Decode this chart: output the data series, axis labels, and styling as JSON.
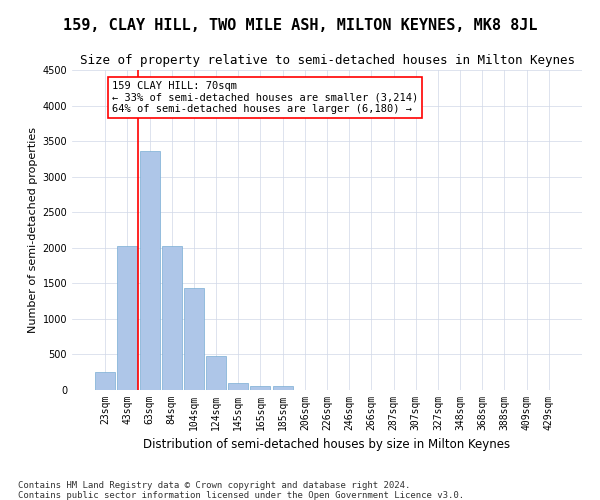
{
  "title": "159, CLAY HILL, TWO MILE ASH, MILTON KEYNES, MK8 8JL",
  "subtitle": "Size of property relative to semi-detached houses in Milton Keynes",
  "xlabel": "Distribution of semi-detached houses by size in Milton Keynes",
  "ylabel": "Number of semi-detached properties",
  "footer1": "Contains HM Land Registry data © Crown copyright and database right 2024.",
  "footer2": "Contains public sector information licensed under the Open Government Licence v3.0.",
  "categories": [
    "23sqm",
    "43sqm",
    "63sqm",
    "84sqm",
    "104sqm",
    "124sqm",
    "145sqm",
    "165sqm",
    "185sqm",
    "206sqm",
    "226sqm",
    "246sqm",
    "266sqm",
    "287sqm",
    "307sqm",
    "327sqm",
    "348sqm",
    "368sqm",
    "388sqm",
    "409sqm",
    "429sqm"
  ],
  "values": [
    250,
    2030,
    3360,
    2030,
    1440,
    480,
    100,
    60,
    55,
    0,
    0,
    0,
    0,
    0,
    0,
    0,
    0,
    0,
    0,
    0,
    0
  ],
  "bar_color": "#aec6e8",
  "bar_edge_color": "#7aaed4",
  "grid_color": "#d0d8e8",
  "annotation_line1": "159 CLAY HILL: 70sqm",
  "annotation_line2": "← 33% of semi-detached houses are smaller (3,214)",
  "annotation_line3": "64% of semi-detached houses are larger (6,180) →",
  "vline_x": 1.5,
  "vline_color": "red",
  "annotation_box_color": "red",
  "ylim": [
    0,
    4500
  ],
  "yticks": [
    0,
    500,
    1000,
    1500,
    2000,
    2500,
    3000,
    3500,
    4000,
    4500
  ],
  "title_fontsize": 11,
  "subtitle_fontsize": 9,
  "xlabel_fontsize": 8.5,
  "ylabel_fontsize": 8,
  "annotation_fontsize": 7.5,
  "footer_fontsize": 6.5,
  "tick_fontsize": 7
}
